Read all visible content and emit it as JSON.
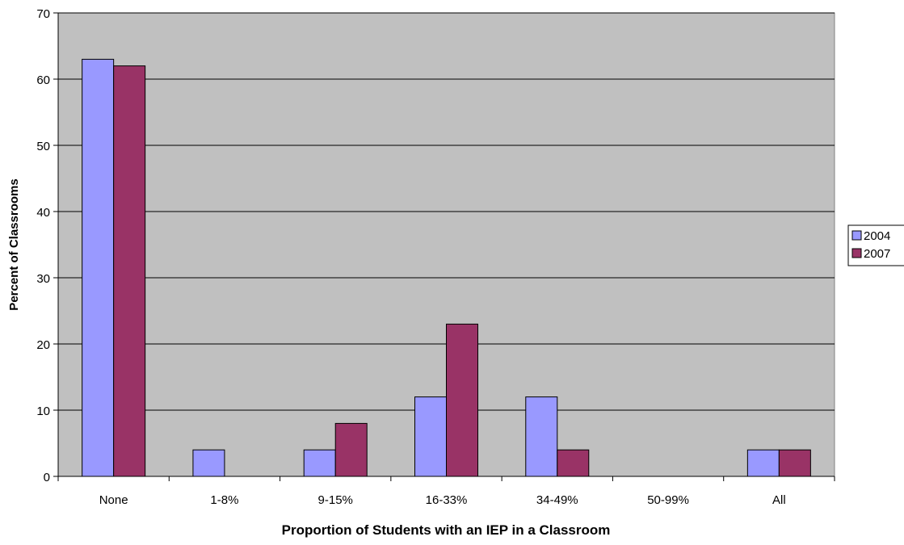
{
  "chart_data": {
    "type": "bar",
    "title": "",
    "xlabel": "Proportion of Students with an IEP in a Classroom",
    "ylabel": "Percent of Classrooms",
    "categories": [
      "None",
      "1-8%",
      "9-15%",
      "16-33%",
      "34-49%",
      "50-99%",
      "All"
    ],
    "series": [
      {
        "name": "2004",
        "values": [
          63,
          4,
          4,
          12,
          12,
          0,
          4
        ],
        "color": "#9999ff"
      },
      {
        "name": "2007",
        "values": [
          62,
          0,
          8,
          23,
          4,
          0,
          4
        ],
        "color": "#993366"
      }
    ],
    "ylim": [
      0,
      70
    ],
    "yticks": [
      0,
      10,
      20,
      30,
      40,
      50,
      60,
      70
    ],
    "grid": true,
    "plot_background": "#c0c0c0",
    "legend_position": "right"
  }
}
